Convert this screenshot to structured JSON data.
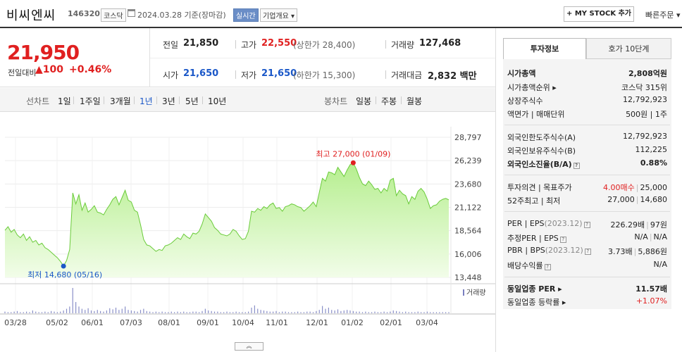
{
  "header": {
    "name": "비씨엔씨",
    "code": "146320",
    "market": "코스닥",
    "date": "2024.03.28",
    "date_suffix": "기준(장마감)",
    "realtime": "실시간",
    "company_info": "기업개요 ▾",
    "mystock_button": "+ MY STOCK 추가",
    "quick_order": "빠른주문 ▾"
  },
  "price": {
    "current": "21,950",
    "change_label": "전일대비",
    "change_icon": "up-triangle-icon",
    "change_value": "▲100",
    "change_pct": "+0.46%",
    "prev_label": "전일",
    "prev_value": "21,850",
    "high_label": "고가",
    "high_value": "22,550",
    "upper_limit": "(상한가 28,400)",
    "volume_label": "거래량",
    "volume_value": "127,468",
    "open_label": "시가",
    "open_value": "21,650",
    "low_label": "저가",
    "low_value": "21,650",
    "lower_limit": "(하한가 15,300)",
    "amount_label": "거래대금",
    "amount_value": "2,832",
    "amount_unit": "백만"
  },
  "period_tabs": {
    "line_label": "선차트",
    "line": [
      "1일",
      "1주일",
      "3개월",
      "1년",
      "3년",
      "5년",
      "10년"
    ],
    "active": "1년",
    "candle_label": "봉차트",
    "candle": [
      "일봉",
      "주봉",
      "월봉"
    ]
  },
  "chart_data": {
    "type": "area",
    "y_ticks": [
      "28,797",
      "26,239",
      "23,680",
      "21,122",
      "18,564",
      "16,006",
      "13,448"
    ],
    "ylim": [
      13448,
      28797
    ],
    "x_ticks": [
      "03/28",
      "05/02",
      "06/01",
      "07/03",
      "08/01",
      "09/01",
      "10/04",
      "11/01",
      "12/01",
      "01/02",
      "02/01",
      "03/04"
    ],
    "high_annotation": "최고 27,000 (01/09)",
    "low_annotation": "최저 14,680 (05/16)",
    "volume_legend": "거래량",
    "series": [
      {
        "values": [
          18600,
          19000,
          18400,
          18700,
          18100,
          17800,
          18200,
          17500,
          17900,
          17300,
          17500,
          17000,
          17200,
          16700,
          16500,
          16200,
          15900,
          15600,
          15200,
          14680,
          15300,
          16500,
          22700,
          21500,
          22500,
          20800,
          21600,
          20600,
          20900,
          21300,
          20600,
          20500,
          20300,
          20900,
          21400,
          22000,
          22300,
          21400,
          22200,
          23000,
          21900,
          21700,
          20800,
          20600,
          19200,
          17600,
          17000,
          16900,
          16600,
          16300,
          16500,
          16400,
          16900,
          17000,
          17200,
          17500,
          17800,
          17600,
          18200,
          17900,
          17700,
          18300,
          18200,
          18500,
          19300,
          20400,
          20000,
          19600,
          18900,
          18600,
          18200,
          18100,
          18000,
          18200,
          18700,
          18500,
          18000,
          17600,
          17700,
          18500,
          20700,
          20600,
          21000,
          20800,
          21200,
          21000,
          21400,
          21600,
          21000,
          21100,
          20700,
          21200,
          21300,
          21500,
          21400,
          21200,
          21100,
          20700,
          21000,
          21300,
          21700,
          21200,
          22800,
          24300,
          24000,
          25000,
          24900,
          24700,
          25500,
          25000,
          24500,
          25200,
          25800,
          26000,
          25300,
          24400,
          23700,
          23500,
          24000,
          23600,
          23100,
          23200,
          22700,
          23200,
          22900,
          24100,
          24300,
          22400,
          23000,
          22600,
          22400,
          21500,
          22300,
          22000,
          22900,
          23200,
          22800,
          22000,
          21000,
          21300,
          21400,
          21800,
          22000,
          22100,
          21950
        ],
        "volume": [
          3,
          2,
          2,
          3,
          4,
          2,
          2,
          3,
          2,
          5,
          3,
          2,
          2,
          3,
          2,
          4,
          3,
          2,
          3,
          5,
          8,
          12,
          45,
          20,
          12,
          8,
          6,
          9,
          5,
          4,
          6,
          4,
          3,
          5,
          9,
          7,
          10,
          6,
          8,
          12,
          6,
          5,
          4,
          3,
          6,
          8,
          4,
          3,
          2,
          3,
          2,
          3,
          2,
          2,
          3,
          2,
          3,
          2,
          3,
          2,
          2,
          3,
          3,
          2,
          4,
          8,
          5,
          4,
          3,
          3,
          2,
          2,
          3,
          2,
          2,
          3,
          2,
          2,
          2,
          3,
          10,
          14,
          8,
          6,
          5,
          4,
          3,
          3,
          4,
          2,
          3,
          3,
          2,
          2,
          2,
          3,
          2,
          2,
          3,
          3,
          2,
          4,
          6,
          13,
          8,
          10,
          6,
          5,
          7,
          4,
          5,
          6,
          5,
          4,
          3,
          3,
          2,
          3,
          2,
          2,
          3,
          2,
          2,
          3,
          2,
          3,
          5,
          4,
          3,
          2,
          3,
          2,
          2,
          2,
          3,
          2,
          2,
          3,
          2,
          2,
          2,
          2,
          2,
          2,
          2
        ]
      }
    ]
  },
  "right_panel": {
    "tabs": [
      "투자정보",
      "호가 10단계"
    ],
    "rows1": [
      {
        "k": "시가총액",
        "v": "2,808억원",
        "bold": true
      },
      {
        "k": "시가총액순위 ▸",
        "v": "코스닥 315위"
      },
      {
        "k": "상장주식수",
        "v": "12,792,923"
      },
      {
        "k": "액면가 | 매매단위",
        "v": "500원 | 1주"
      }
    ],
    "rows2": [
      {
        "k": "외국인한도주식수(A)",
        "v": "12,792,923"
      },
      {
        "k": "외국인보유주식수(B)",
        "v": "112,225"
      },
      {
        "k": "외국인소진율(B/A)",
        "v": "0.88%",
        "bold": true
      }
    ],
    "rows3": [
      {
        "k": "투자의견 | 목표주가",
        "v1": "4.00매수",
        "v2": "25,000"
      },
      {
        "k": "52주최고 | 최저",
        "v1": "27,000",
        "v2": "14,680"
      }
    ],
    "rows4": [
      {
        "k": "PER | EPS",
        "k_sub": "(2023.12)",
        "v1": "226.29배",
        "v2": "97원"
      },
      {
        "k": "추정PER | EPS",
        "k_sub": "",
        "v1": "N/A",
        "v2": "N/A"
      },
      {
        "k": "PBR | BPS",
        "k_sub": "(2023.12)",
        "v1": "3.73배",
        "v2": "5,886원"
      },
      {
        "k": "배당수익률",
        "k_sub": "",
        "v1": "",
        "v2": "N/A"
      }
    ],
    "rows5": [
      {
        "k": "동일업종 PER ▸",
        "v": "11.57배"
      },
      {
        "k": "동일업종 등락률 ▸",
        "v": "+1.07%"
      }
    ],
    "question_icon": "?"
  },
  "toggle": "︽"
}
